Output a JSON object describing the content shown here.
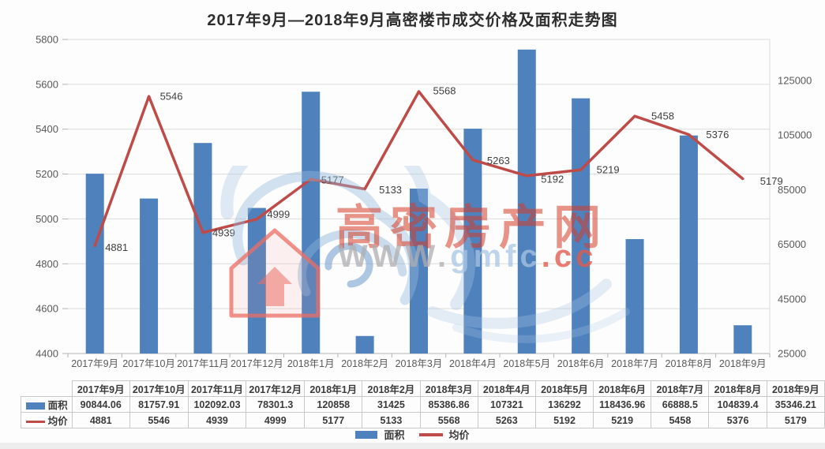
{
  "page": {
    "title": "2017年9月—2018年9月高密楼市成交价格及面积走势图"
  },
  "watermark": {
    "site_name": "高密房产网",
    "url_www": "WWW.",
    "url_mid": "gmfc",
    "url_end": ".cc"
  },
  "colors": {
    "bar": "#4f81bd",
    "line": "#be4b48",
    "grid": "#dcdcdc",
    "axis_line": "#b3b3b3",
    "axis_text": "#595959",
    "value_text": "#3f3f3f",
    "table_border": "#c9c9c9",
    "table_text": "#3b3b3b"
  },
  "chart_data": {
    "type": "combo-bar-line",
    "title": "2017年9月—2018年9月高密楼市成交价格及面积走势图",
    "categories": [
      "2017年9月",
      "2017年10月",
      "2017年11月",
      "2017年12月",
      "2018年1月",
      "2018年2月",
      "2018年3月",
      "2018年4月",
      "2018年5月",
      "2018年6月",
      "2018年7月",
      "2018年8月",
      "2018年9月"
    ],
    "series": [
      {
        "name": "面积",
        "kind": "bar",
        "axis": "right",
        "values": [
          90844.06,
          81757.91,
          102092.03,
          78301.3,
          120858,
          31425,
          85386.86,
          107321,
          136292,
          118436.96,
          66888.5,
          104839.4,
          35346.21
        ]
      },
      {
        "name": "均价",
        "kind": "line",
        "axis": "left",
        "values": [
          4881,
          5546,
          4939,
          4999,
          5177,
          5133,
          5568,
          5263,
          5192,
          5219,
          5458,
          5376,
          5179
        ],
        "point_labels": [
          "4881",
          "5546",
          "4939",
          "4999",
          "5177",
          "5133",
          "5568",
          "5263",
          "5192",
          "5219",
          "5458",
          "5376",
          "5179"
        ]
      }
    ],
    "left_axis": {
      "min": 4400,
      "max": 5800,
      "step": 200,
      "tick_labels": [
        "5800",
        "5600",
        "5400",
        "5200",
        "5000",
        "4800",
        "4600",
        "4400"
      ]
    },
    "right_axis": {
      "min": 25000,
      "max": 140000,
      "step": 20000,
      "tick_labels": [
        "125000",
        "105000",
        "85000",
        "65000",
        "45000",
        "25000"
      ],
      "tick_values": [
        125000,
        105000,
        85000,
        65000,
        45000,
        25000
      ]
    },
    "grid": true,
    "legend_position": "bottom"
  },
  "table": {
    "columns": [
      "2017年9月",
      "2017年10月",
      "2017年11月",
      "2017年12月",
      "2018年1月",
      "2018年2月",
      "2018年3月",
      "2018年4月",
      "2018年5月",
      "2018年6月",
      "2018年7月",
      "2018年8月",
      "2018年9月"
    ],
    "rows": [
      {
        "label": "面积",
        "swatch": "bar",
        "values": [
          "90844.06",
          "81757.91",
          "102092.03",
          "78301.3",
          "120858",
          "31425",
          "85386.86",
          "107321",
          "136292",
          "118436.96",
          "66888.5",
          "104839.4",
          "35346.21"
        ]
      },
      {
        "label": "均价",
        "swatch": "line",
        "values": [
          "4881",
          "5546",
          "4939",
          "4999",
          "5177",
          "5133",
          "5568",
          "5263",
          "5192",
          "5219",
          "5458",
          "5376",
          "5179"
        ]
      }
    ]
  }
}
